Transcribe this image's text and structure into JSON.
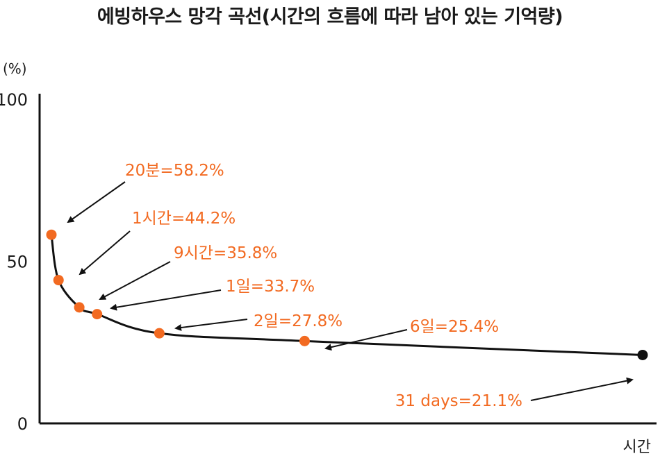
{
  "chart_data": {
    "type": "line",
    "title": "에빙하우스 망각 곡선(시간의 흐름에 따라 남아 있는 기억량)",
    "ylabel": "(%)",
    "xlabel": "시간",
    "ylim": [
      0,
      100
    ],
    "yticks": [
      "0",
      "50",
      "100"
    ],
    "points": [
      {
        "name": "20min",
        "label": "20분=58.2%",
        "x": 0.3,
        "y": 58.2,
        "color": "#f26a21"
      },
      {
        "name": "1hour",
        "label": "1시간=44.2%",
        "x": 1.5,
        "y": 44.2,
        "color": "#f26a21"
      },
      {
        "name": "9hours",
        "label": "9시간=35.8%",
        "x": 5.0,
        "y": 35.8,
        "color": "#f26a21"
      },
      {
        "name": "1day",
        "label": "1일=33.7%",
        "x": 8.0,
        "y": 33.7,
        "color": "#f26a21"
      },
      {
        "name": "2days",
        "label": "2일=27.8%",
        "x": 18.5,
        "y": 27.8,
        "color": "#f26a21"
      },
      {
        "name": "6days",
        "label": "6일=25.4%",
        "x": 43.0,
        "y": 25.4,
        "color": "#f26a21"
      },
      {
        "name": "31days",
        "label": "31 days=21.1%",
        "x": 100.0,
        "y": 21.1,
        "color": "#111111"
      }
    ]
  }
}
